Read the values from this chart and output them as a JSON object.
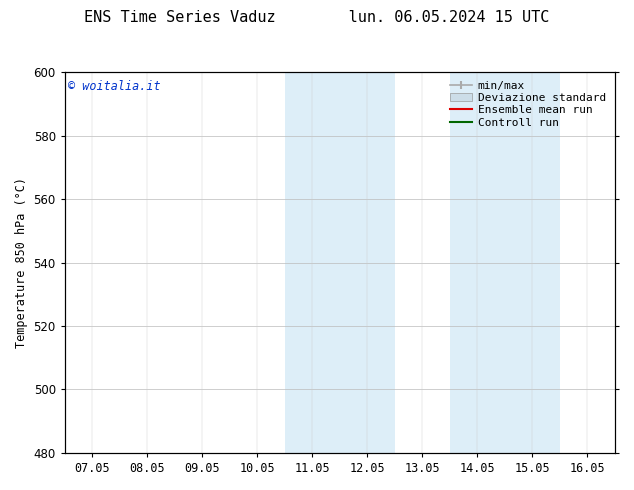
{
  "title_left": "ENS Time Series Vaduz",
  "title_right": "lun. 06.05.2024 15 UTC",
  "ylabel": "Temperature 850 hPa (°C)",
  "ylim": [
    480,
    600
  ],
  "yticks": [
    480,
    500,
    520,
    540,
    560,
    580,
    600
  ],
  "xtick_labels": [
    "07.05",
    "08.05",
    "09.05",
    "10.05",
    "11.05",
    "12.05",
    "13.05",
    "14.05",
    "15.05",
    "16.05"
  ],
  "xtick_positions": [
    0,
    1,
    2,
    3,
    4,
    5,
    6,
    7,
    8,
    9
  ],
  "xlim": [
    -0.5,
    9.5
  ],
  "shaded_bands": [
    {
      "x_start": 3.5,
      "x_end": 4.5,
      "color": "#ddeef8"
    },
    {
      "x_start": 4.5,
      "x_end": 5.5,
      "color": "#ddeef8"
    },
    {
      "x_start": 6.5,
      "x_end": 7.5,
      "color": "#ddeef8"
    },
    {
      "x_start": 7.5,
      "x_end": 8.5,
      "color": "#ddeef8"
    }
  ],
  "legend_items": [
    {
      "label": "min/max",
      "color": "#aaaaaa",
      "style": "line_with_caps"
    },
    {
      "label": "Deviazione standard",
      "color": "#ccdde8",
      "style": "filled"
    },
    {
      "label": "Ensemble mean run",
      "color": "#dd0000",
      "style": "line"
    },
    {
      "label": "Controll run",
      "color": "#006600",
      "style": "line"
    }
  ],
  "watermark_text": "© woitalia.it",
  "watermark_color": "#0033cc",
  "background_color": "#ffffff",
  "plot_bg_color": "#ffffff",
  "border_color": "#000000",
  "tick_label_fontsize": 8.5,
  "title_fontsize": 11,
  "ylabel_fontsize": 8.5,
  "legend_fontsize": 8,
  "watermark_fontsize": 8.5
}
